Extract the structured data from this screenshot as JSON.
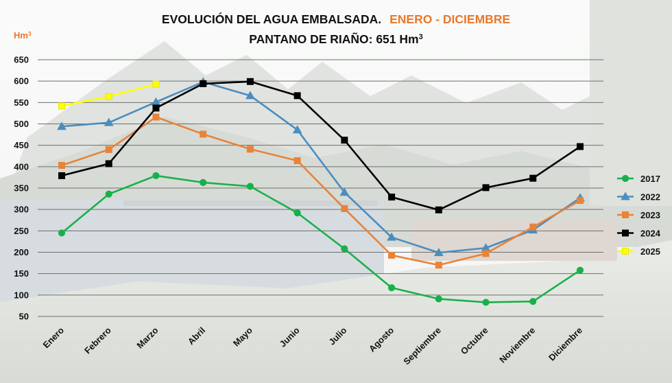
{
  "chart_data": {
    "type": "line",
    "title_part1": "EVOLUCIÓN DEL AGUA EMBALSADA.",
    "title_part2": "ENERO - DICIEMBRE",
    "subtitle": "PANTANO DE  RIAÑO:  651  Hm",
    "subtitle_sup": "3",
    "ylabel": "Hm",
    "ylabel_sup": "3",
    "xlabel": "",
    "ylim": [
      50,
      650
    ],
    "yticks": [
      50,
      100,
      150,
      200,
      250,
      300,
      350,
      400,
      450,
      500,
      550,
      600,
      650
    ],
    "grid": true,
    "legend_position": "right",
    "categories": [
      "Enero",
      "Febrero",
      "Marzo",
      "Abril",
      "Mayo",
      "Junio",
      "Julio",
      "Agosto",
      "Septiembre",
      "Octubre",
      "Noviembre",
      "Diciembre"
    ],
    "series": [
      {
        "name": "2017",
        "color": "#19b04b",
        "marker": "circle",
        "values": [
          245,
          336,
          379,
          363,
          354,
          292,
          208,
          117,
          91,
          83,
          85,
          158
        ]
      },
      {
        "name": "2022",
        "color": "#4a8dbf",
        "marker": "triangle",
        "values": [
          494,
          503,
          551,
          598,
          566,
          486,
          340,
          235,
          199,
          210,
          252,
          327
        ]
      },
      {
        "name": "2023",
        "color": "#e8833a",
        "marker": "square",
        "values": [
          403,
          440,
          516,
          476,
          441,
          414,
          302,
          193,
          170,
          197,
          259,
          321
        ]
      },
      {
        "name": "2024",
        "color": "#000000",
        "marker": "square",
        "values": [
          379,
          407,
          537,
          594,
          599,
          566,
          462,
          329,
          299,
          351,
          373,
          447
        ]
      },
      {
        "name": "2025",
        "color": "#ffff00",
        "marker": "square",
        "values": [
          542,
          564,
          593,
          null,
          null,
          null,
          null,
          null,
          null,
          null,
          null,
          null
        ]
      }
    ]
  }
}
